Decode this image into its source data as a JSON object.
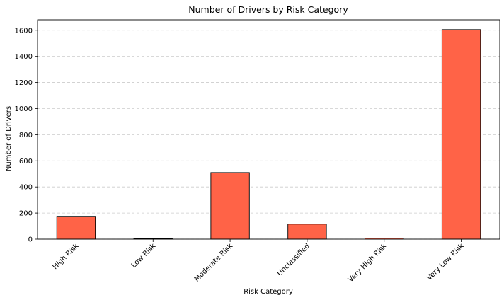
{
  "chart_data": {
    "type": "bar",
    "title": "Number of Drivers by Risk Category",
    "xlabel": "Risk Category",
    "ylabel": "Number of Drivers",
    "categories": [
      "High Risk",
      "Low Risk",
      "Moderate Risk",
      "Unclassified",
      "Very High Risk",
      "Very Low Risk"
    ],
    "values": [
      175,
      3,
      510,
      115,
      8,
      1605
    ],
    "ylim": [
      0,
      1680
    ],
    "yticks": [
      0,
      200,
      400,
      600,
      800,
      1000,
      1200,
      1400,
      1600
    ],
    "grid": "y-dashed",
    "legend": "none",
    "colors": {
      "bar_fill": "#ff6347",
      "bar_edge": "#000000",
      "grid": "#cccccc"
    }
  }
}
